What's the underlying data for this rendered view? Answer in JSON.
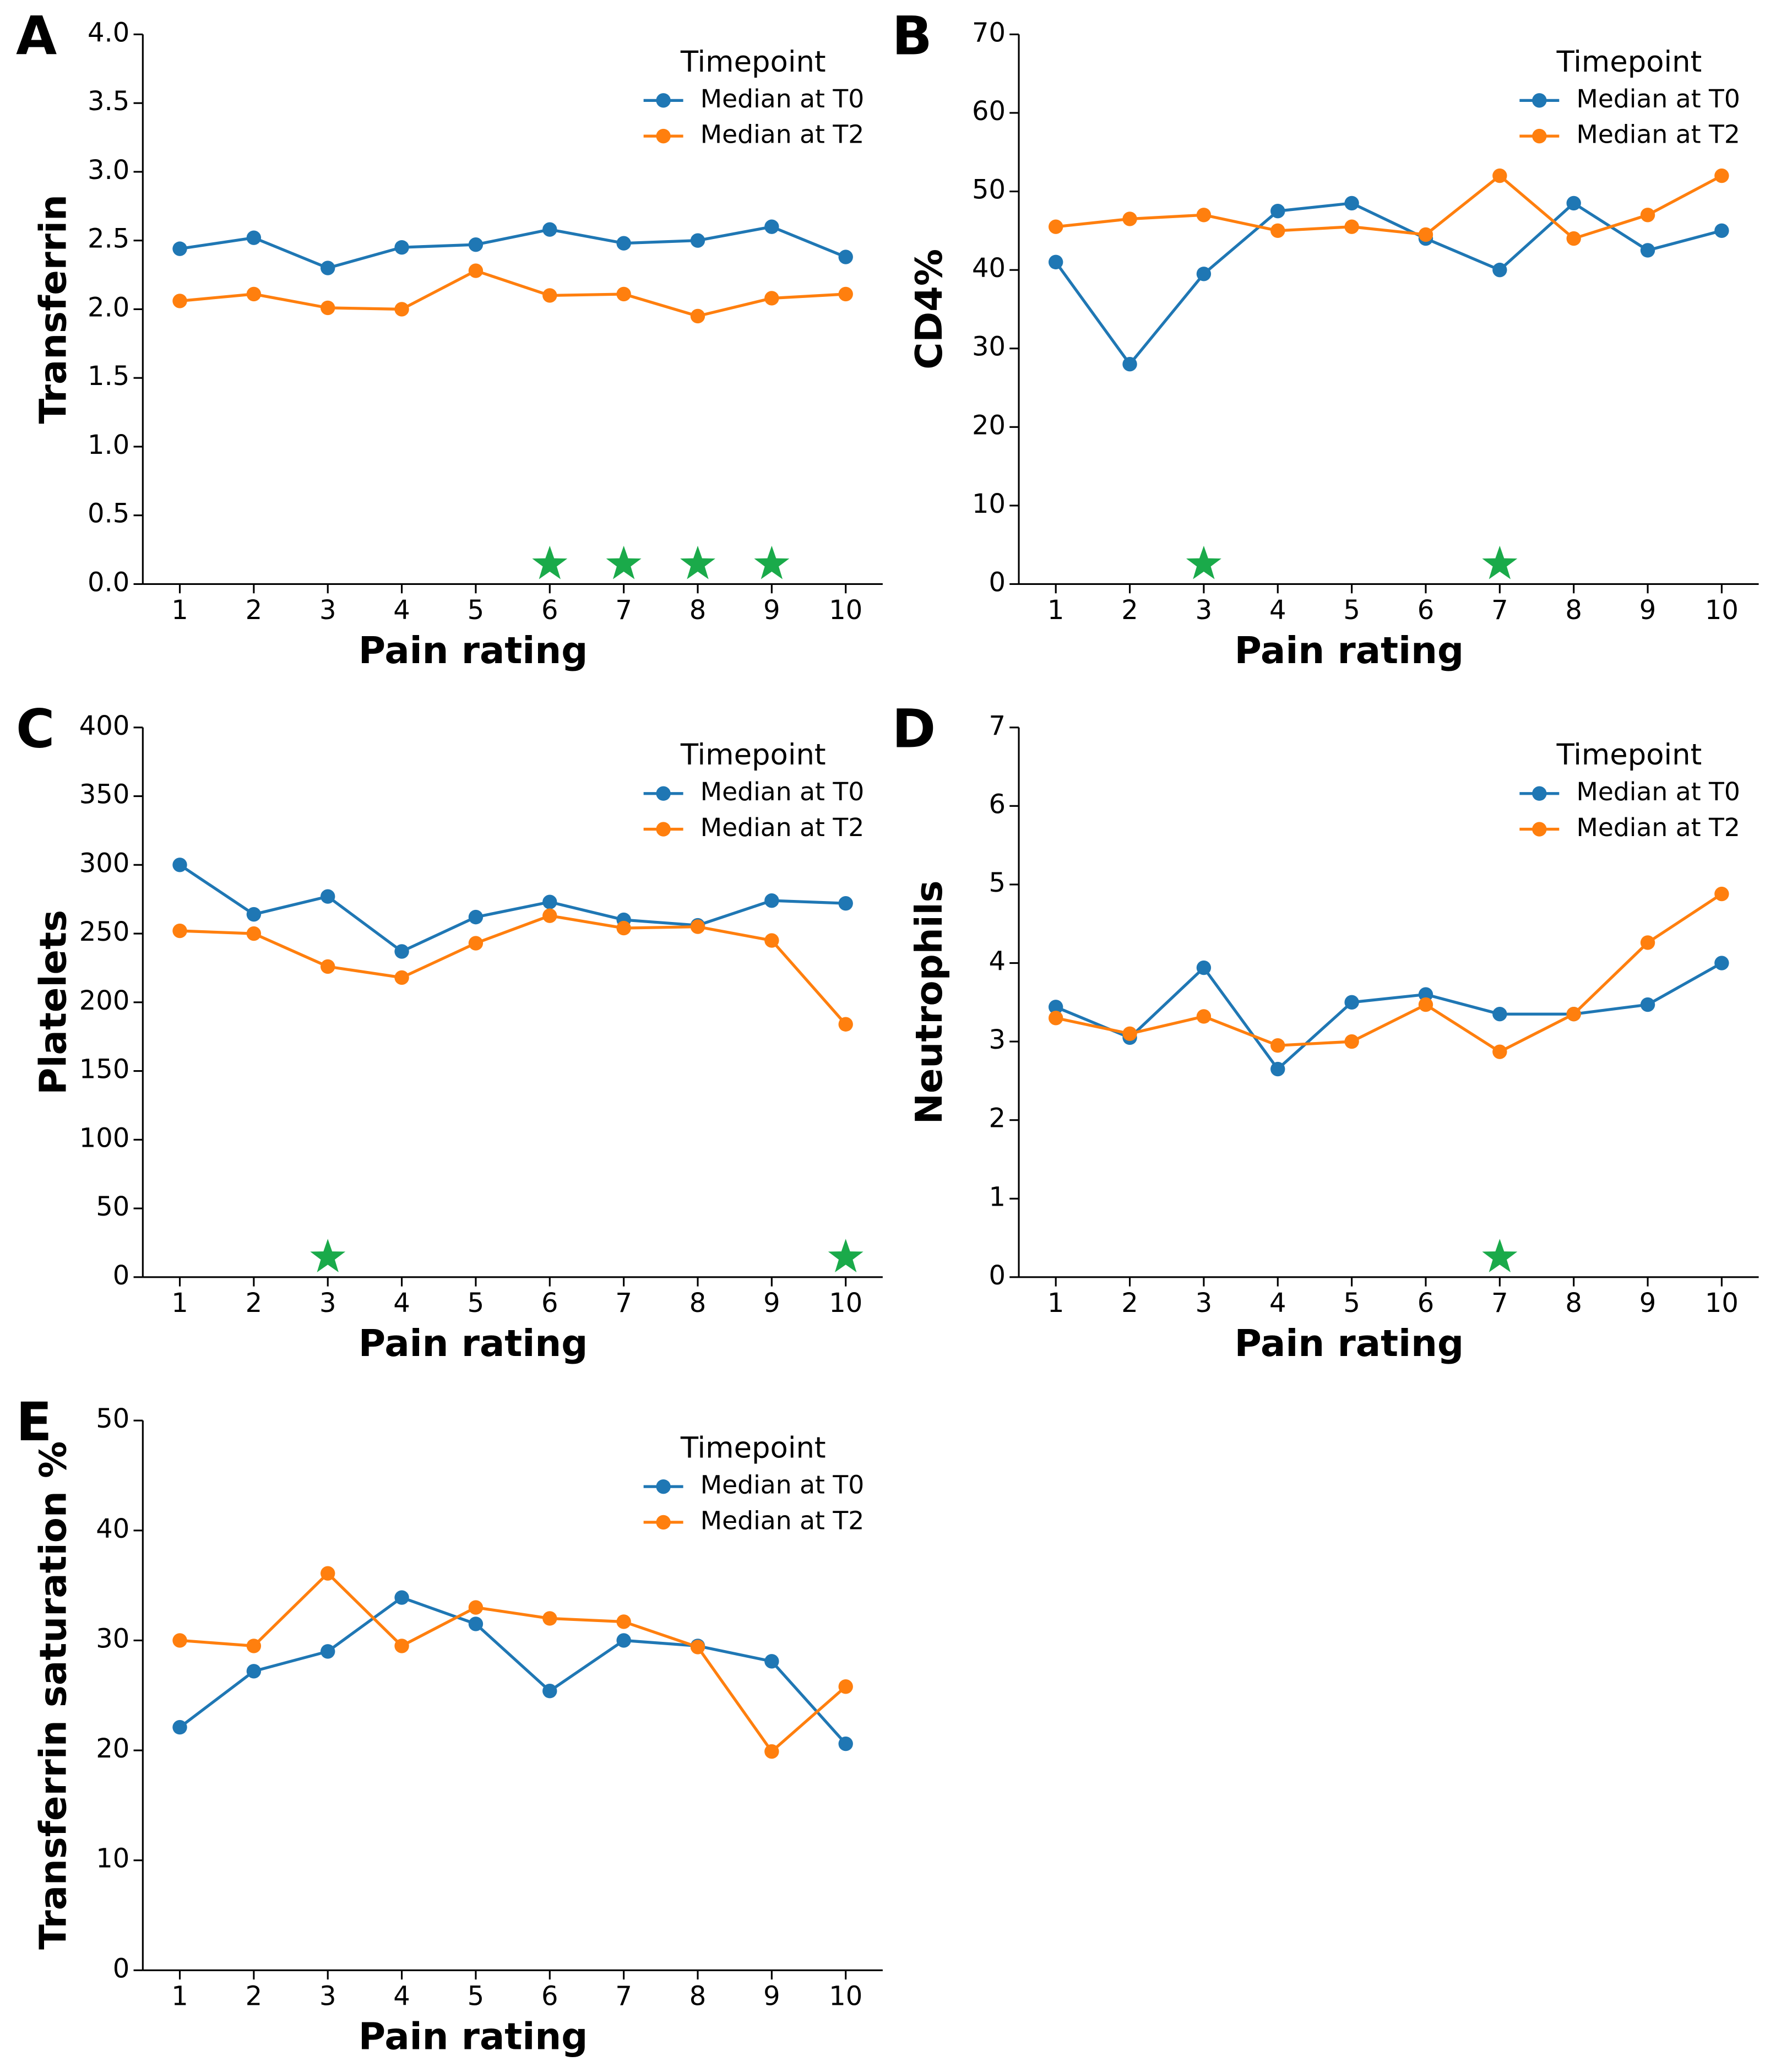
{
  "chart_data": [
    {
      "type": "line",
      "panel_label": "A",
      "ylabel": "Transferrin",
      "xlabel": "Pain rating",
      "legend_title": "Timepoint",
      "legend": "upper right",
      "x": [
        1,
        2,
        3,
        4,
        5,
        6,
        7,
        8,
        9,
        10
      ],
      "xlim": [
        0.5,
        10.5
      ],
      "xticks": [
        1,
        2,
        3,
        4,
        5,
        6,
        7,
        8,
        9,
        10
      ],
      "ylim": [
        0,
        4
      ],
      "yticks": [
        {
          "value": 0,
          "label": "0.0"
        },
        0.5,
        {
          "value": 1,
          "label": "1.0"
        },
        1.5,
        {
          "value": 2,
          "label": "2.0"
        },
        2.5,
        {
          "value": 3,
          "label": "3.0"
        },
        3.5,
        {
          "value": 4,
          "label": "4.0"
        }
      ],
      "series": [
        {
          "name": "Median at T0",
          "color": "#1f77b4",
          "values": [
            2.44,
            2.52,
            2.3,
            2.45,
            2.47,
            2.58,
            2.48,
            2.5,
            2.6,
            2.38
          ]
        },
        {
          "name": "Median at T2",
          "color": "#ff7f0e",
          "values": [
            2.06,
            2.11,
            2.01,
            2.0,
            2.28,
            2.1,
            2.11,
            1.95,
            2.08,
            2.11
          ]
        }
      ],
      "significant_x": [
        6,
        7,
        8,
        9
      ],
      "star_color": "#1aaa4a"
    },
    {
      "type": "line",
      "panel_label": "B",
      "ylabel": "CD4%",
      "xlabel": "Pain rating",
      "legend_title": "Timepoint",
      "legend": "upper right",
      "x": [
        1,
        2,
        3,
        4,
        5,
        6,
        7,
        8,
        9,
        10
      ],
      "xlim": [
        0.5,
        10.5
      ],
      "xticks": [
        1,
        2,
        3,
        4,
        5,
        6,
        7,
        8,
        9,
        10
      ],
      "ylim": [
        0,
        70
      ],
      "yticks": [
        0,
        10,
        20,
        30,
        40,
        50,
        60,
        70
      ],
      "series": [
        {
          "name": "Median at T0",
          "color": "#1f77b4",
          "values": [
            41,
            28,
            39.5,
            47.5,
            48.5,
            44,
            40,
            48.5,
            42.5,
            45
          ]
        },
        {
          "name": "Median at T2",
          "color": "#ff7f0e",
          "values": [
            45.5,
            46.5,
            47,
            45,
            45.5,
            44.5,
            52,
            44,
            47,
            52
          ]
        }
      ],
      "significant_x": [
        3,
        7
      ],
      "star_color": "#1aaa4a"
    },
    {
      "type": "line",
      "panel_label": "C",
      "ylabel": "Platelets",
      "xlabel": "Pain rating",
      "legend_title": "Timepoint",
      "legend": "upper right",
      "x": [
        1,
        2,
        3,
        4,
        5,
        6,
        7,
        8,
        9,
        10
      ],
      "xlim": [
        0.5,
        10.5
      ],
      "xticks": [
        1,
        2,
        3,
        4,
        5,
        6,
        7,
        8,
        9,
        10
      ],
      "ylim": [
        0,
        400
      ],
      "yticks": [
        0,
        50,
        100,
        150,
        200,
        250,
        300,
        350,
        400
      ],
      "series": [
        {
          "name": "Median at T0",
          "color": "#1f77b4",
          "values": [
            300,
            264,
            277,
            237,
            262,
            273,
            260,
            256,
            274,
            272
          ]
        },
        {
          "name": "Median at T2",
          "color": "#ff7f0e",
          "values": [
            252,
            250,
            226,
            218,
            243,
            263,
            254,
            255,
            245,
            184
          ]
        }
      ],
      "significant_x": [
        3,
        10
      ],
      "star_color": "#1aaa4a"
    },
    {
      "type": "line",
      "panel_label": "D",
      "ylabel": "Neutrophils",
      "xlabel": "Pain rating",
      "legend_title": "Timepoint",
      "legend": "upper right",
      "x": [
        1,
        2,
        3,
        4,
        5,
        6,
        7,
        8,
        9,
        10
      ],
      "xlim": [
        0.5,
        10.5
      ],
      "xticks": [
        1,
        2,
        3,
        4,
        5,
        6,
        7,
        8,
        9,
        10
      ],
      "ylim": [
        0,
        7
      ],
      "yticks": [
        0,
        1,
        2,
        3,
        4,
        5,
        6,
        7
      ],
      "series": [
        {
          "name": "Median at T0",
          "color": "#1f77b4",
          "values": [
            3.44,
            3.05,
            3.94,
            2.65,
            3.5,
            3.6,
            3.35,
            3.35,
            3.47,
            4.0
          ]
        },
        {
          "name": "Median at T2",
          "color": "#ff7f0e",
          "values": [
            3.3,
            3.1,
            3.32,
            2.95,
            3.0,
            3.47,
            2.87,
            3.35,
            4.26,
            4.88
          ]
        }
      ],
      "significant_x": [
        7
      ],
      "star_color": "#1aaa4a"
    },
    {
      "type": "line",
      "panel_label": "E",
      "ylabel": "Transferrin saturation %",
      "xlabel": "Pain rating",
      "legend_title": "Timepoint",
      "legend": "upper right",
      "x": [
        1,
        2,
        3,
        4,
        5,
        6,
        7,
        8,
        9,
        10
      ],
      "xlim": [
        0.5,
        10.5
      ],
      "xticks": [
        1,
        2,
        3,
        4,
        5,
        6,
        7,
        8,
        9,
        10
      ],
      "ylim": [
        0,
        50
      ],
      "yticks": [
        0,
        10,
        20,
        30,
        40,
        50
      ],
      "series": [
        {
          "name": "Median at T0",
          "color": "#1f77b4",
          "values": [
            22.1,
            27.2,
            29,
            33.9,
            31.5,
            25.4,
            30,
            29.5,
            28.1,
            20.6
          ]
        },
        {
          "name": "Median at T2",
          "color": "#ff7f0e",
          "values": [
            30,
            29.5,
            36.1,
            29.5,
            33,
            32,
            31.7,
            29.4,
            19.9,
            25.8
          ]
        }
      ],
      "significant_x": [],
      "star_color": "#1aaa4a"
    }
  ]
}
